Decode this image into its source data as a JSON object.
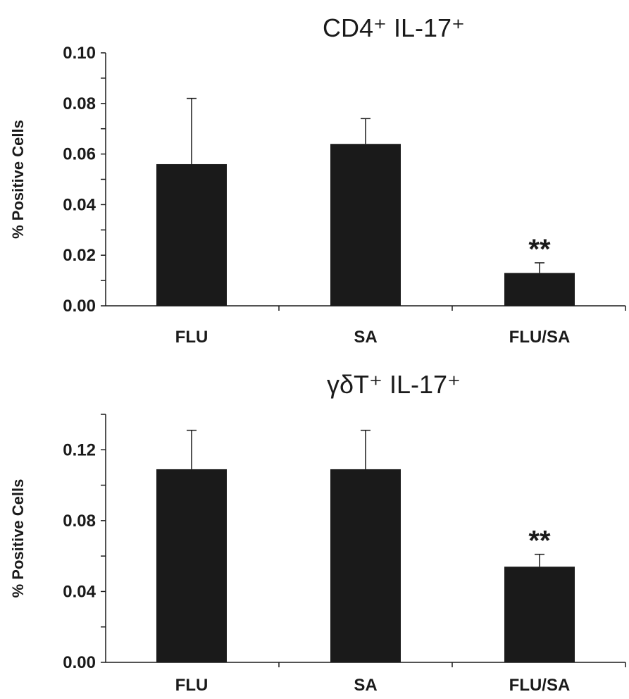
{
  "chart_data": [
    {
      "type": "bar",
      "title": "CD4⁺ IL-17⁺",
      "ylabel": "% Positive Cells",
      "xlabel": "",
      "categories": [
        "FLU",
        "SA",
        "FLU/SA"
      ],
      "values": [
        0.056,
        0.064,
        0.013
      ],
      "error_upper": [
        0.082,
        0.074,
        0.017
      ],
      "significance": [
        "",
        "",
        "**"
      ],
      "ylim": [
        0,
        0.1
      ],
      "yticks": [
        "0.00",
        "0.02",
        "0.04",
        "0.06",
        "0.08",
        "0.10"
      ],
      "grid": false,
      "bar_color": "#1a1a1a"
    },
    {
      "type": "bar",
      "title": "γδT⁺ IL-17⁺",
      "ylabel": "% Positive Cells",
      "xlabel": "",
      "categories": [
        "FLU",
        "SA",
        "FLU/SA"
      ],
      "values": [
        0.109,
        0.109,
        0.054
      ],
      "error_upper": [
        0.131,
        0.131,
        0.061
      ],
      "significance": [
        "",
        "",
        "**"
      ],
      "ylim": [
        0,
        0.14
      ],
      "yticks": [
        "0.00",
        "0.04",
        "0.08",
        "0.12"
      ],
      "grid": false,
      "bar_color": "#1a1a1a"
    }
  ]
}
